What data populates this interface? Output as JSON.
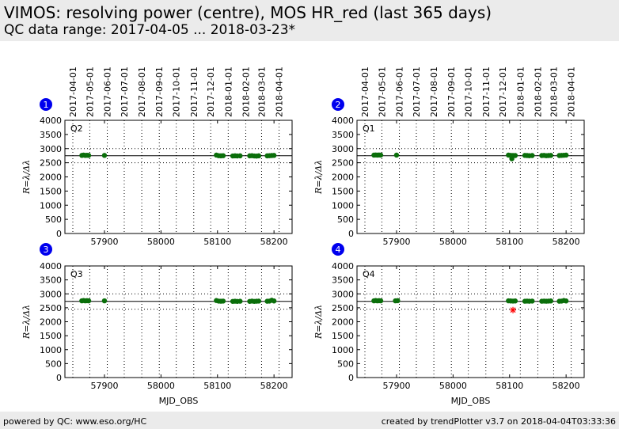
{
  "header": {
    "title": "VIMOS: resolving power (centre), MOS HR_red (last 365 days)",
    "subtitle": "QC data range: 2017-04-05 ... 2018-03-23*"
  },
  "footer": {
    "left": "powered by QC: www.eso.org/HC",
    "right": "created by trendPlotter v3.7 on 2018-04-04T03:33:36"
  },
  "colors": {
    "points": "#0a6e0a",
    "outlier": "#ff0000",
    "badge": "#0000ee",
    "band": "#ebebeb"
  },
  "chart_data": [
    {
      "type": "scatter",
      "panel_number": "1",
      "quadrant": "Q2",
      "xlabel": "",
      "ylabel": "R=λ/Δλ",
      "xlim": [
        57830,
        58232
      ],
      "ylim": [
        0,
        4000
      ],
      "xticks": [
        57900,
        58000,
        58100,
        58200
      ],
      "yticks": [
        0,
        500,
        1000,
        1500,
        2000,
        2500,
        3000,
        3500,
        4000
      ],
      "date_ticks": [
        "2017-04-01",
        "2017-05-01",
        "2017-06-01",
        "2017-07-01",
        "2017-08-01",
        "2017-09-01",
        "2017-10-01",
        "2017-11-01",
        "2017-12-01",
        "2018-01-01",
        "2018-02-01",
        "2018-03-01",
        "2018-04-01"
      ],
      "reference_line": 2750,
      "limit_lines": [
        2500,
        3000
      ],
      "grid": true,
      "points": [
        [
          57860,
          2760
        ],
        [
          57863,
          2770
        ],
        [
          57866,
          2760
        ],
        [
          57869,
          2765
        ],
        [
          57872,
          2760
        ],
        [
          57900,
          2760
        ],
        [
          58098,
          2770
        ],
        [
          58102,
          2750
        ],
        [
          58106,
          2745
        ],
        [
          58110,
          2750
        ],
        [
          58127,
          2740
        ],
        [
          58131,
          2745
        ],
        [
          58135,
          2740
        ],
        [
          58140,
          2745
        ],
        [
          58157,
          2745
        ],
        [
          58161,
          2750
        ],
        [
          58165,
          2740
        ],
        [
          58169,
          2735
        ],
        [
          58173,
          2745
        ],
        [
          58188,
          2745
        ],
        [
          58192,
          2750
        ],
        [
          58196,
          2755
        ],
        [
          58200,
          2760
        ]
      ],
      "outliers": []
    },
    {
      "type": "scatter",
      "panel_number": "2",
      "quadrant": "Q1",
      "xlabel": "",
      "ylabel": "R=λ/Δλ",
      "xlim": [
        57830,
        58232
      ],
      "ylim": [
        0,
        4000
      ],
      "xticks": [
        57900,
        58000,
        58100,
        58200
      ],
      "yticks": [
        0,
        500,
        1000,
        1500,
        2000,
        2500,
        3000,
        3500,
        4000
      ],
      "date_ticks": [
        "2017-04-01",
        "2017-05-01",
        "2017-06-01",
        "2017-07-01",
        "2017-08-01",
        "2017-09-01",
        "2017-10-01",
        "2017-11-01",
        "2017-12-01",
        "2018-01-01",
        "2018-02-01",
        "2018-03-01",
        "2018-04-01"
      ],
      "reference_line": 2750,
      "limit_lines": [
        2500,
        3000
      ],
      "grid": true,
      "points": [
        [
          57860,
          2770
        ],
        [
          57863,
          2775
        ],
        [
          57866,
          2770
        ],
        [
          57869,
          2775
        ],
        [
          57872,
          2770
        ],
        [
          57900,
          2770
        ],
        [
          58098,
          2770
        ],
        [
          58102,
          2760
        ],
        [
          58104,
          2640
        ],
        [
          58106,
          2755
        ],
        [
          58110,
          2755
        ],
        [
          58127,
          2760
        ],
        [
          58131,
          2755
        ],
        [
          58135,
          2750
        ],
        [
          58140,
          2755
        ],
        [
          58157,
          2755
        ],
        [
          58161,
          2760
        ],
        [
          58165,
          2750
        ],
        [
          58169,
          2755
        ],
        [
          58173,
          2760
        ],
        [
          58188,
          2755
        ],
        [
          58192,
          2760
        ],
        [
          58196,
          2765
        ],
        [
          58200,
          2770
        ]
      ],
      "outliers": []
    },
    {
      "type": "scatter",
      "panel_number": "3",
      "quadrant": "Q3",
      "xlabel": "",
      "ylabel": "R=λ/Δλ",
      "xlim": [
        57830,
        58232
      ],
      "ylim": [
        0,
        4000
      ],
      "xticks": [
        57900,
        58000,
        58100,
        58200
      ],
      "yticks": [
        0,
        500,
        1000,
        1500,
        2000,
        2500,
        3000,
        3500,
        4000
      ],
      "reference_line": 2730,
      "limit_lines": [
        2450,
        3000
      ],
      "grid": true,
      "points": [
        [
          57860,
          2750
        ],
        [
          57863,
          2760
        ],
        [
          57866,
          2750
        ],
        [
          57869,
          2755
        ],
        [
          57872,
          2750
        ],
        [
          57900,
          2750
        ],
        [
          58098,
          2760
        ],
        [
          58102,
          2740
        ],
        [
          58106,
          2735
        ],
        [
          58110,
          2740
        ],
        [
          58127,
          2730
        ],
        [
          58131,
          2735
        ],
        [
          58135,
          2730
        ],
        [
          58140,
          2735
        ],
        [
          58157,
          2730
        ],
        [
          58161,
          2740
        ],
        [
          58165,
          2730
        ],
        [
          58169,
          2735
        ],
        [
          58173,
          2740
        ],
        [
          58188,
          2735
        ],
        [
          58192,
          2740
        ],
        [
          58196,
          2770
        ],
        [
          58200,
          2745
        ]
      ],
      "outliers": []
    },
    {
      "type": "scatter",
      "panel_number": "4",
      "quadrant": "Q4",
      "xlabel": "MJD_OBS",
      "ylabel": "R=λ/Δλ",
      "xlim": [
        57830,
        58232
      ],
      "ylim": [
        0,
        4000
      ],
      "xticks": [
        57900,
        58000,
        58100,
        58200
      ],
      "yticks": [
        0,
        500,
        1000,
        1500,
        2000,
        2500,
        3000,
        3500,
        4000
      ],
      "reference_line": 2730,
      "limit_lines": [
        2450,
        3000
      ],
      "grid": true,
      "points": [
        [
          57860,
          2750
        ],
        [
          57863,
          2760
        ],
        [
          57866,
          2750
        ],
        [
          57869,
          2755
        ],
        [
          57872,
          2750
        ],
        [
          57898,
          2750
        ],
        [
          57902,
          2755
        ],
        [
          58098,
          2750
        ],
        [
          58102,
          2745
        ],
        [
          58106,
          2740
        ],
        [
          58110,
          2745
        ],
        [
          58127,
          2735
        ],
        [
          58131,
          2740
        ],
        [
          58135,
          2735
        ],
        [
          58140,
          2740
        ],
        [
          58157,
          2735
        ],
        [
          58161,
          2740
        ],
        [
          58165,
          2735
        ],
        [
          58169,
          2740
        ],
        [
          58173,
          2745
        ],
        [
          58188,
          2735
        ],
        [
          58192,
          2740
        ],
        [
          58196,
          2760
        ],
        [
          58200,
          2745
        ]
      ],
      "outliers": [
        [
          58106,
          2420
        ]
      ]
    }
  ],
  "bottom_xlabel": "MJD_OBS"
}
